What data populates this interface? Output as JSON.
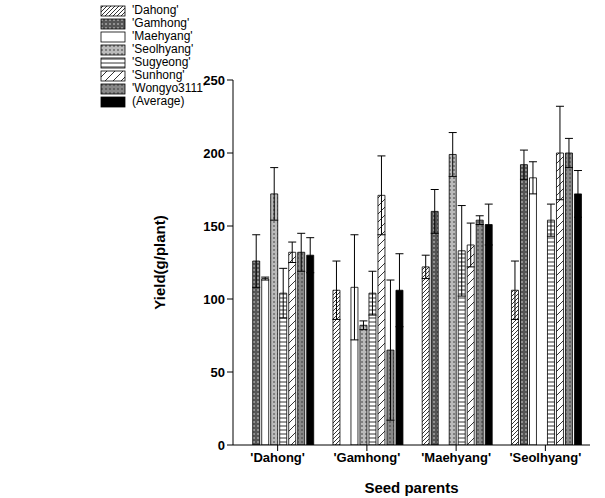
{
  "chart_data": {
    "type": "bar",
    "x_label": "Seed parents",
    "y_label": "Yield(g/plant)",
    "categories": [
      "'Dahong'",
      "'Gamhong'",
      "'Maehyang'",
      "'Seolhyang'"
    ],
    "ylim": [
      0,
      250
    ],
    "yticks": [
      0,
      50,
      100,
      150,
      200,
      250
    ],
    "grid": false,
    "legend": "upper left",
    "series": [
      {
        "name": "'Dahong'",
        "color": "#ffffff",
        "values": [
          null,
          106,
          122,
          106
        ],
        "errors": [
          null,
          20,
          8,
          20
        ]
      },
      {
        "name": "'Gamhong'",
        "color": "#555555",
        "values": [
          126,
          null,
          160,
          192
        ],
        "errors": [
          18,
          null,
          15,
          10
        ]
      },
      {
        "name": "'Maehyang'",
        "color": "#ffffff",
        "values": [
          114,
          108,
          null,
          183
        ],
        "errors": [
          1,
          36,
          null,
          11
        ]
      },
      {
        "name": "'Seolhyang'",
        "color": "#bbbbbb",
        "values": [
          172,
          82,
          199,
          null
        ],
        "errors": [
          18,
          3,
          15,
          null
        ]
      },
      {
        "name": "'Sugyeong'",
        "color": "#ffffff",
        "values": [
          104,
          104,
          133,
          154
        ],
        "errors": [
          17,
          15,
          31,
          11
        ]
      },
      {
        "name": "'Sunhong'",
        "color": "#ffffff",
        "values": [
          132,
          171,
          137,
          200
        ],
        "errors": [
          7,
          27,
          15,
          32
        ]
      },
      {
        "name": "'Wongyo3111'",
        "color": "#888888",
        "values": [
          132,
          65,
          154,
          200
        ],
        "errors": [
          13,
          48,
          3,
          10
        ]
      },
      {
        "name": "(Average)",
        "color": "#000000",
        "values": [
          130,
          106,
          151,
          172
        ],
        "errors": [
          12,
          25,
          14,
          16
        ]
      }
    ]
  }
}
